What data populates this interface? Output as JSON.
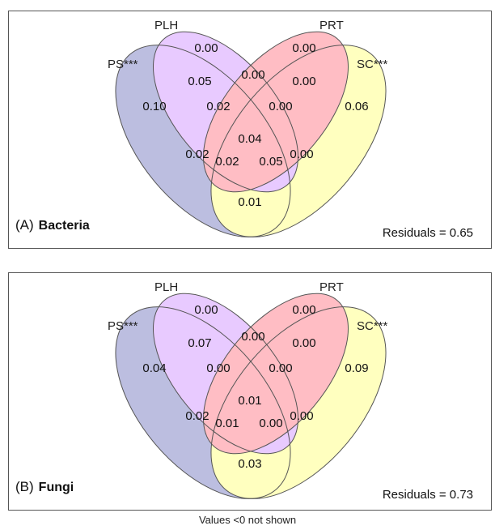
{
  "set_labels": {
    "ps": "PS***",
    "plh": "PLH",
    "prt": "PRT",
    "sc": "SC***"
  },
  "colors": {
    "ps": "#5a5fb4",
    "plh": "#c77dff",
    "prt": "#ff5c6e",
    "sc": "#ffff60"
  },
  "panels": [
    {
      "letter": "(A)",
      "organism": "Bacteria",
      "residuals": "Residuals = 0.65",
      "values": {
        "plh_only": "0.00",
        "prt_only": "0.00",
        "ps_only": "0.10",
        "sc_only": "0.06",
        "ps_plh": "0.05",
        "plh_prt": "0.00",
        "prt_sc": "0.00",
        "ps_plh_prt": "0.02",
        "plh_prt_sc": "0.00",
        "all": "0.04",
        "ps_prt": "0.02",
        "plh_sc": "0.00",
        "ps_prt_sc": "0.02",
        "ps_plh_sc": "0.05",
        "ps_sc": "0.01"
      }
    },
    {
      "letter": "(B)",
      "organism": "Fungi",
      "residuals": "Residuals = 0.73",
      "values": {
        "plh_only": "0.00",
        "prt_only": "0.00",
        "ps_only": "0.04",
        "sc_only": "0.09",
        "ps_plh": "0.07",
        "plh_prt": "0.00",
        "prt_sc": "0.00",
        "ps_plh_prt": "0.00",
        "plh_prt_sc": "0.00",
        "all": "0.01",
        "ps_prt": "0.02",
        "plh_sc": "0.00",
        "ps_prt_sc": "0.01",
        "ps_plh_sc": "0.00",
        "ps_sc": "0.03"
      }
    }
  ],
  "footnote": "Values <0 not shown"
}
